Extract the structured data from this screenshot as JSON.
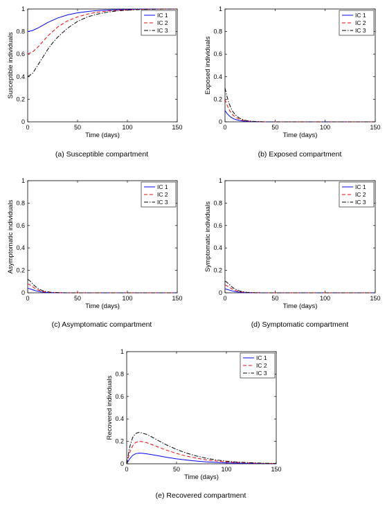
{
  "chart_data": [
    {
      "id": "a",
      "type": "line",
      "caption": "(a)  Susceptible compartment",
      "xlabel": "Time (days)",
      "ylabel": "Susceptible individuals",
      "xlim": [
        0,
        150
      ],
      "ylim": [
        0,
        1
      ],
      "xticks": [
        "0",
        "50",
        "100",
        "150"
      ],
      "yticks": [
        "0",
        "0.2",
        "0.4",
        "0.6",
        "0.8",
        "1"
      ],
      "grid": false,
      "legend_position": "top-right",
      "x": [
        0,
        5,
        10,
        15,
        20,
        25,
        30,
        40,
        50,
        60,
        70,
        80,
        90,
        100,
        110,
        120,
        130,
        140,
        150
      ],
      "series": [
        {
          "name": "IC 1",
          "color": "#0000ff",
          "dash": "solid",
          "values": [
            0.8,
            0.81,
            0.83,
            0.855,
            0.88,
            0.9,
            0.92,
            0.948,
            0.966,
            0.978,
            0.986,
            0.991,
            0.994,
            0.996,
            0.998,
            0.999,
            1.0,
            1.0,
            1.0
          ]
        },
        {
          "name": "IC 2",
          "color": "#ff0000",
          "dash": "dashed",
          "values": [
            0.6,
            0.62,
            0.66,
            0.71,
            0.76,
            0.8,
            0.84,
            0.895,
            0.93,
            0.955,
            0.972,
            0.982,
            0.988,
            0.993,
            0.996,
            0.998,
            0.999,
            1.0,
            1.0
          ]
        },
        {
          "name": "IC 3",
          "color": "#000000",
          "dash": "dashdot",
          "values": [
            0.4,
            0.43,
            0.5,
            0.57,
            0.64,
            0.7,
            0.75,
            0.83,
            0.89,
            0.93,
            0.955,
            0.972,
            0.983,
            0.99,
            0.994,
            0.997,
            0.999,
            1.0,
            1.0
          ]
        }
      ]
    },
    {
      "id": "b",
      "type": "line",
      "caption": "(b)  Exposed compartment",
      "xlabel": "Time (days)",
      "ylabel": "Exposed individuals",
      "xlim": [
        0,
        150
      ],
      "ylim": [
        0,
        1
      ],
      "xticks": [
        "0",
        "50",
        "100",
        "150"
      ],
      "yticks": [
        "0",
        "0.2",
        "0.4",
        "0.6",
        "0.8",
        "1"
      ],
      "grid": false,
      "legend_position": "top-right",
      "x": [
        0,
        2,
        4,
        6,
        8,
        10,
        14,
        18,
        22,
        26,
        30,
        40,
        150
      ],
      "series": [
        {
          "name": "IC 1",
          "color": "#0000ff",
          "dash": "solid",
          "values": [
            0.1,
            0.075,
            0.055,
            0.04,
            0.03,
            0.022,
            0.012,
            0.007,
            0.004,
            0.002,
            0.001,
            0.0,
            0.0
          ]
        },
        {
          "name": "IC 2",
          "color": "#ff0000",
          "dash": "dashed",
          "values": [
            0.2,
            0.15,
            0.11,
            0.08,
            0.06,
            0.044,
            0.024,
            0.013,
            0.007,
            0.004,
            0.002,
            0.0,
            0.0
          ]
        },
        {
          "name": "IC 3",
          "color": "#000000",
          "dash": "dashdot",
          "values": [
            0.3,
            0.225,
            0.165,
            0.12,
            0.088,
            0.065,
            0.035,
            0.019,
            0.01,
            0.006,
            0.003,
            0.0,
            0.0
          ]
        }
      ]
    },
    {
      "id": "c",
      "type": "line",
      "caption": "(c)  Asymptomatic compartment",
      "xlabel": "Time (days)",
      "ylabel": "Asymptomatic individuals",
      "xlim": [
        0,
        150
      ],
      "ylim": [
        0,
        1
      ],
      "xticks": [
        "0",
        "50",
        "100",
        "150"
      ],
      "yticks": [
        "0",
        "0.2",
        "0.4",
        "0.6",
        "0.8",
        "1"
      ],
      "grid": false,
      "legend_position": "top-right",
      "x": [
        0,
        2,
        4,
        6,
        8,
        10,
        14,
        18,
        22,
        26,
        30,
        40,
        150
      ],
      "series": [
        {
          "name": "IC 1",
          "color": "#0000ff",
          "dash": "solid",
          "values": [
            0.04,
            0.036,
            0.03,
            0.024,
            0.018,
            0.014,
            0.008,
            0.004,
            0.002,
            0.001,
            0.0,
            0.0,
            0.0
          ]
        },
        {
          "name": "IC 2",
          "color": "#ff0000",
          "dash": "dashed",
          "values": [
            0.08,
            0.072,
            0.06,
            0.047,
            0.036,
            0.027,
            0.015,
            0.008,
            0.004,
            0.002,
            0.001,
            0.0,
            0.0
          ]
        },
        {
          "name": "IC 3",
          "color": "#000000",
          "dash": "dashdot",
          "values": [
            0.12,
            0.108,
            0.09,
            0.07,
            0.054,
            0.04,
            0.022,
            0.012,
            0.006,
            0.003,
            0.002,
            0.0,
            0.0
          ]
        }
      ]
    },
    {
      "id": "d",
      "type": "line",
      "caption": "(d)  Symptomatic compartment",
      "xlabel": "Time (days)",
      "ylabel": "Symptomatic individuals",
      "xlim": [
        0,
        150
      ],
      "ylim": [
        0,
        1
      ],
      "xticks": [
        "0",
        "50",
        "100",
        "150"
      ],
      "yticks": [
        "0",
        "0.2",
        "0.4",
        "0.6",
        "0.8",
        "1"
      ],
      "grid": false,
      "legend_position": "top-right",
      "x": [
        0,
        2,
        4,
        6,
        8,
        10,
        14,
        18,
        22,
        26,
        30,
        40,
        150
      ],
      "series": [
        {
          "name": "IC 1",
          "color": "#0000ff",
          "dash": "solid",
          "values": [
            0.035,
            0.03,
            0.025,
            0.02,
            0.015,
            0.011,
            0.006,
            0.003,
            0.002,
            0.001,
            0.0,
            0.0,
            0.0
          ]
        },
        {
          "name": "IC 2",
          "color": "#ff0000",
          "dash": "dashed",
          "values": [
            0.07,
            0.062,
            0.051,
            0.04,
            0.03,
            0.022,
            0.012,
            0.006,
            0.003,
            0.002,
            0.001,
            0.0,
            0.0
          ]
        },
        {
          "name": "IC 3",
          "color": "#000000",
          "dash": "dashdot",
          "values": [
            0.105,
            0.093,
            0.077,
            0.06,
            0.045,
            0.033,
            0.018,
            0.009,
            0.005,
            0.003,
            0.001,
            0.0,
            0.0
          ]
        }
      ]
    },
    {
      "id": "e",
      "type": "line",
      "caption": "(e) Recovered compartment",
      "xlabel": "Time (days)",
      "ylabel": "Recovered individuals",
      "xlim": [
        0,
        150
      ],
      "ylim": [
        0,
        1
      ],
      "xticks": [
        "0",
        "50",
        "100",
        "150"
      ],
      "yticks": [
        "0",
        "0.2",
        "0.4",
        "0.6",
        "0.8",
        "1"
      ],
      "grid": false,
      "legend_position": "top-right",
      "x": [
        0,
        3,
        6,
        9,
        12,
        15,
        20,
        25,
        30,
        40,
        50,
        60,
        70,
        80,
        90,
        100,
        110,
        120,
        130,
        140,
        150
      ],
      "series": [
        {
          "name": "IC 1",
          "color": "#0000ff",
          "dash": "solid",
          "values": [
            0.0,
            0.045,
            0.075,
            0.09,
            0.095,
            0.094,
            0.089,
            0.082,
            0.074,
            0.058,
            0.044,
            0.033,
            0.024,
            0.017,
            0.012,
            0.008,
            0.006,
            0.004,
            0.003,
            0.002,
            0.001
          ]
        },
        {
          "name": "IC 2",
          "color": "#ff0000",
          "dash": "dashed",
          "values": [
            0.0,
            0.1,
            0.16,
            0.19,
            0.2,
            0.198,
            0.188,
            0.172,
            0.155,
            0.121,
            0.092,
            0.068,
            0.05,
            0.035,
            0.025,
            0.017,
            0.012,
            0.008,
            0.005,
            0.003,
            0.002
          ]
        },
        {
          "name": "IC 3",
          "color": "#000000",
          "dash": "dashdot",
          "values": [
            0.0,
            0.15,
            0.235,
            0.27,
            0.28,
            0.276,
            0.262,
            0.24,
            0.215,
            0.168,
            0.128,
            0.095,
            0.069,
            0.049,
            0.034,
            0.023,
            0.016,
            0.011,
            0.007,
            0.005,
            0.003
          ]
        }
      ]
    }
  ]
}
